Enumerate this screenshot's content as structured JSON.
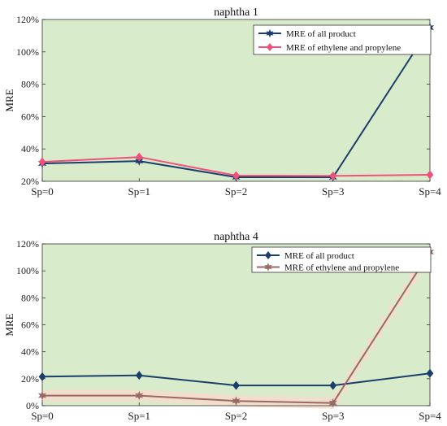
{
  "chart_data": [
    {
      "type": "line",
      "title": "naphtha 1",
      "xlabel": "",
      "ylabel": "MRE",
      "categories": [
        "Sp=0",
        "Sp=1",
        "Sp=2",
        "Sp=3",
        "Sp=4"
      ],
      "ylim": [
        20,
        120
      ],
      "yticks": [
        "20%",
        "40%",
        "60%",
        "80%",
        "100%",
        "120%"
      ],
      "ytick_values": [
        20,
        40,
        60,
        80,
        100,
        120
      ],
      "grid": false,
      "background_color": "#d8ebcb",
      "legend_position": "top-right",
      "series": [
        {
          "name": "MRE  of all product",
          "values": [
            31,
            32.5,
            22.5,
            22.5,
            115
          ],
          "color": "#1b3f6b",
          "marker": "star"
        },
        {
          "name": "MRE of ethylene and propylene",
          "values": [
            32,
            35,
            23.5,
            23.3,
            24
          ],
          "color": "#f0507a",
          "marker": "diamond"
        }
      ]
    },
    {
      "type": "line",
      "title": "naphtha 4",
      "xlabel": "",
      "ylabel": "MRE",
      "categories": [
        "Sp=0",
        "Sp=1",
        "Sp=2",
        "Sp=3",
        "Sp=4"
      ],
      "ylim": [
        0,
        120
      ],
      "yticks": [
        "0%",
        "20%",
        "40%",
        "60%",
        "80%",
        "100%",
        "120%"
      ],
      "ytick_values": [
        0,
        20,
        40,
        60,
        80,
        100,
        120
      ],
      "grid": false,
      "background_color": "#d8ebcb",
      "legend_position": "top-right",
      "series": [
        {
          "name": "MRE  of all product",
          "values": [
            21.5,
            22.5,
            15,
            15,
            24
          ],
          "color": "#1b3f6b",
          "marker": "diamond"
        },
        {
          "name": "MRE of ethylene and propylene",
          "values": [
            7.5,
            7.5,
            3.5,
            2,
            114
          ],
          "color": "#9a6a66",
          "marker": "star",
          "band_color": "#f6dccb"
        }
      ]
    }
  ]
}
